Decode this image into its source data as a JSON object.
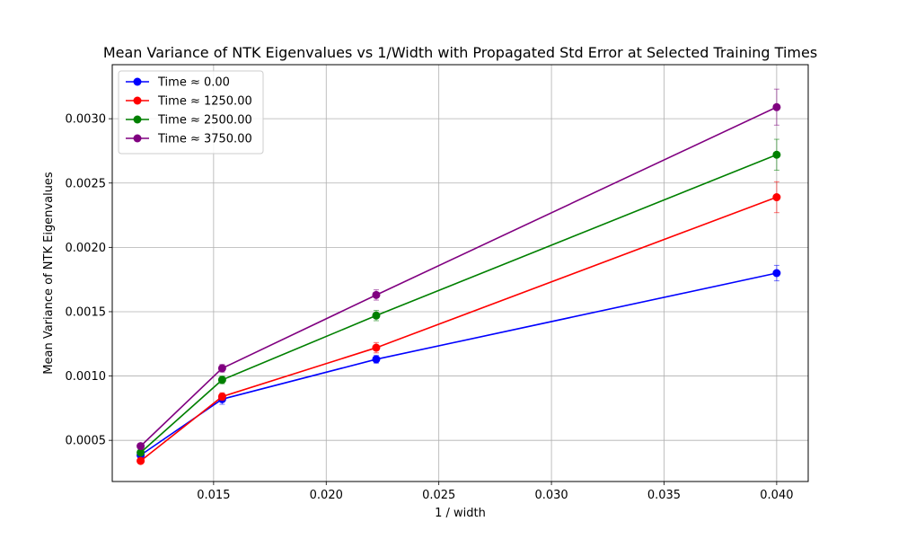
{
  "chart_data": {
    "type": "line",
    "title": "Mean Variance of NTK Eigenvalues vs 1/Width with Propagated Std Error at Selected Training Times",
    "xlabel": "1 / width",
    "ylabel": "Mean Variance of NTK Eigenvalues",
    "xlim": [
      0.0105,
      0.0414
    ],
    "ylim": [
      0.00018,
      0.00342
    ],
    "xticks": [
      0.015,
      0.02,
      0.025,
      0.03,
      0.035,
      0.04
    ],
    "xtick_labels": [
      "0.015",
      "0.020",
      "0.025",
      "0.030",
      "0.035",
      "0.040"
    ],
    "yticks": [
      0.0005,
      0.001,
      0.0015,
      0.002,
      0.0025,
      0.003
    ],
    "ytick_labels": [
      "0.0005",
      "0.0010",
      "0.0015",
      "0.0020",
      "0.0025",
      "0.0030"
    ],
    "grid": true,
    "legend_position": "top-left",
    "x": [
      0.01176,
      0.01538,
      0.02222,
      0.04
    ],
    "series": [
      {
        "name": "Time ≈ 0.00",
        "color": "#0000ff",
        "values": [
          0.000385,
          0.00082,
          0.00113,
          0.0018
        ],
        "errors": [
          2e-05,
          4e-05,
          3e-05,
          6e-05
        ]
      },
      {
        "name": "Time ≈ 1250.00",
        "color": "#ff0000",
        "values": [
          0.00034,
          0.00084,
          0.00122,
          0.00239
        ],
        "errors": [
          2e-05,
          3e-05,
          4e-05,
          0.00012
        ]
      },
      {
        "name": "Time ≈ 2500.00",
        "color": "#008000",
        "values": [
          0.000405,
          0.00097,
          0.00147,
          0.00272
        ],
        "errors": [
          2e-05,
          3e-05,
          4e-05,
          0.00012
        ]
      },
      {
        "name": "Time ≈ 3750.00",
        "color": "#800080",
        "values": [
          0.000455,
          0.00106,
          0.00163,
          0.00309
        ],
        "errors": [
          2e-05,
          3e-05,
          4e-05,
          0.00014
        ]
      }
    ]
  }
}
